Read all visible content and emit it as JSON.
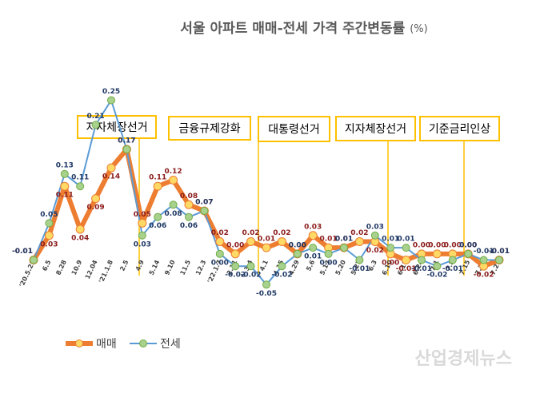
{
  "chart_data": {
    "type": "line",
    "title": "서울 아파트 매매-전세 가격 주간변동률",
    "unit": "(%)",
    "categories": [
      "'20.5.22",
      "6.5",
      "8.28",
      "10.9",
      "12.04",
      "'21.1.8",
      "2.5",
      "4.9",
      "5.14",
      "9.10",
      "11.5",
      "12.3",
      "'22.1.7",
      "2.11",
      "3.4",
      "4.1",
      "4.15",
      "4.29",
      "5.6",
      "5.13",
      "5.20",
      "5.27",
      "6.3",
      "6.10",
      "6.17",
      "6.24",
      "7.1",
      "7.8",
      "7.15",
      "7.22",
      "7.29"
    ],
    "series": [
      {
        "name": "매매",
        "color": "#ed7d31",
        "marker_color": "#ffd966",
        "label_color": "#8b1a1a",
        "values": [
          -0.01,
          0.03,
          0.11,
          0.04,
          0.09,
          0.14,
          0.17,
          0.05,
          0.11,
          0.12,
          0.08,
          0.07,
          0.02,
          0,
          0.02,
          0.01,
          0.02,
          0,
          0.03,
          0.01,
          0.01,
          0.02,
          0.02,
          0,
          -0.01,
          0,
          0,
          0,
          0,
          -0.02,
          -0.01
        ],
        "value_labels": [
          "-0.01",
          "0.03",
          "0.11",
          "0.04",
          "0.09",
          "0.14",
          "0.17",
          "0.05",
          "0.11",
          "0.12",
          "0.08",
          "0.07",
          "0.02",
          "0.00",
          "0.02",
          "0.01",
          "0.02",
          "0.00",
          "0.03",
          "0.01",
          "0.01",
          "0.02",
          "0.02",
          "0.00",
          "-0.01",
          "0.00",
          "0.00",
          "0.00",
          "0.00",
          "-0.02",
          "-0.01"
        ]
      },
      {
        "name": "전세",
        "color": "#5b9bd5",
        "marker_color": "#a9d18e",
        "label_color": "#1f3864",
        "values": [
          -0.01,
          0.05,
          0.13,
          0.11,
          0.21,
          0.25,
          0.17,
          0.03,
          0.06,
          0.08,
          0.06,
          0.07,
          0,
          -0.02,
          -0.02,
          -0.05,
          -0.02,
          0,
          0.01,
          0,
          0.01,
          -0.01,
          0.03,
          0.01,
          0.01,
          -0.01,
          -0.02,
          -0.01,
          0,
          -0.01,
          -0.01
        ],
        "value_labels": [
          "-0.01",
          "0.05",
          "0.13",
          "0.11",
          "0.21",
          "0.25",
          "0.17",
          "0.03",
          "0.06",
          "0.08",
          "0.06",
          "0.07",
          "0.00",
          "-0.02",
          "-0.02",
          "-0.05",
          "-0.02",
          "0.00",
          "0.01",
          "0.00",
          "0.01",
          "-0.01",
          "0.03",
          "0.01",
          "0.01",
          "-0.01",
          "-0.02",
          "-0.01",
          "0.00",
          "-0.01",
          "-0.01"
        ]
      }
    ],
    "ylim": [
      -0.06,
      0.3
    ],
    "annotations": [
      "지자체장선거",
      "금융규제강화",
      "대통령선거",
      "지자체장선거",
      "기준금리인상"
    ],
    "watermark": "산업경제뉴스"
  }
}
